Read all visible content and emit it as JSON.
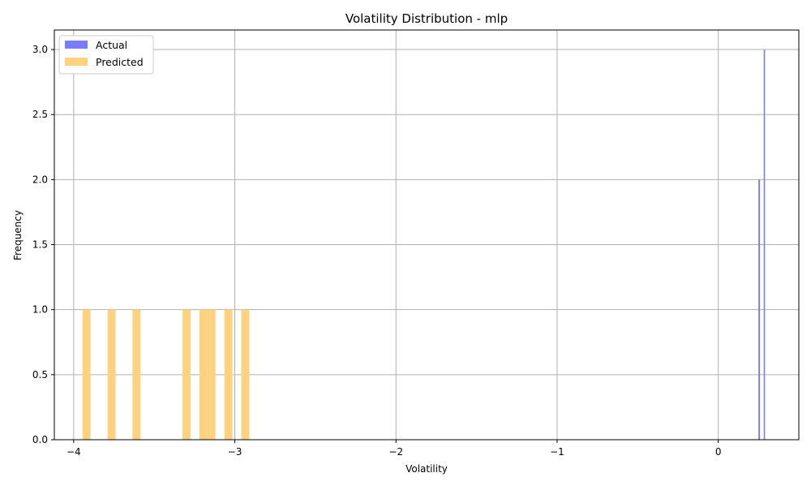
{
  "chart_data": {
    "type": "bar",
    "title": "Volatility Distribution - mlp",
    "xlabel": "Volatility",
    "ylabel": "Frequency",
    "xlim": [
      -4.12,
      0.5
    ],
    "ylim": [
      0.0,
      3.15
    ],
    "grid": true,
    "legend_position": "top-left",
    "x_ticks": [
      -4,
      -3,
      -2,
      -1,
      0
    ],
    "x_tick_labels": [
      "−4",
      "−3",
      "−2",
      "−1",
      "0"
    ],
    "y_ticks": [
      0.0,
      0.5,
      1.0,
      1.5,
      2.0,
      2.5,
      3.0
    ],
    "y_tick_labels": [
      "0.0",
      "0.5",
      "1.0",
      "1.5",
      "2.0",
      "2.5",
      "3.0"
    ],
    "series": [
      {
        "name": "Actual",
        "color": "#7b7bff",
        "opacity": 1.0,
        "bins": [
          {
            "x0": 0.249,
            "x1": 0.259,
            "count": 2
          },
          {
            "x0": 0.282,
            "x1": 0.29,
            "count": 3
          }
        ]
      },
      {
        "name": "Predicted",
        "color": "#ffd27f",
        "opacity": 1.0,
        "bins": [
          {
            "x0": -3.945,
            "x1": -3.895,
            "count": 1
          },
          {
            "x0": -3.79,
            "x1": -3.74,
            "count": 1
          },
          {
            "x0": -3.635,
            "x1": -3.585,
            "count": 1
          },
          {
            "x0": -3.325,
            "x1": -3.275,
            "count": 1
          },
          {
            "x0": -3.22,
            "x1": -3.17,
            "count": 1
          },
          {
            "x0": -3.17,
            "x1": -3.12,
            "count": 1
          },
          {
            "x0": -3.065,
            "x1": -3.015,
            "count": 1
          },
          {
            "x0": -2.96,
            "x1": -2.91,
            "count": 1
          }
        ]
      }
    ]
  }
}
